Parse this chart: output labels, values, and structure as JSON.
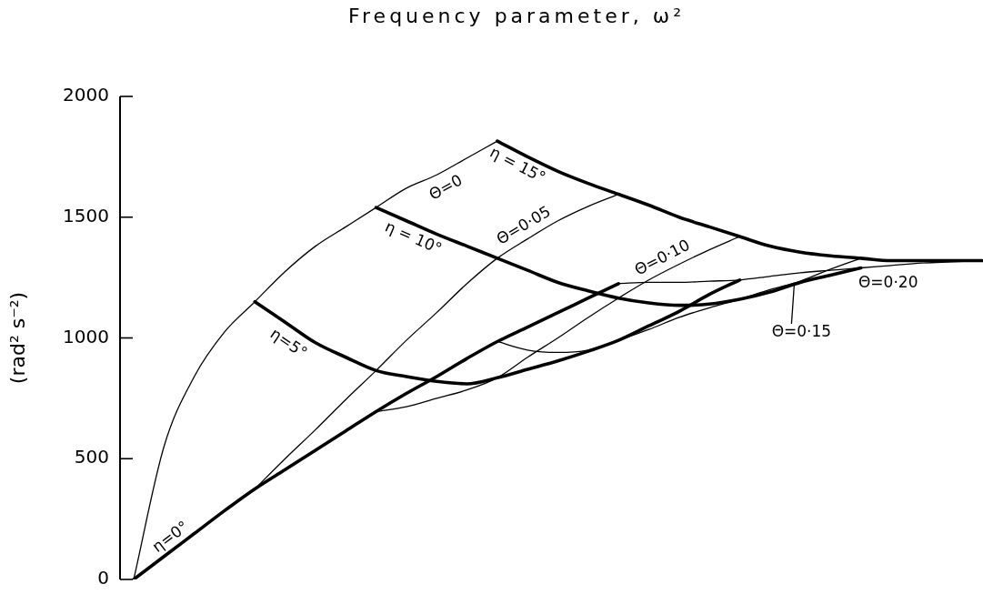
{
  "chart_data": {
    "type": "line",
    "title": "Frequency parameter, ω²",
    "ylabel": "(rad² s⁻²)",
    "categories": [
      null,
      null,
      null,
      null,
      null,
      null,
      null,
      null,
      null,
      null,
      null,
      null,
      null,
      null,
      null,
      null,
      null,
      null,
      null,
      null,
      null,
      null,
      null,
      null,
      null,
      null,
      null,
      null,
      null
    ],
    "series": [
      {
        "name": "η=0°",
        "color": "#000000",
        "values": [
          0,
          95,
          190,
          285,
          375,
          455,
          535,
          615,
          695,
          770,
          840,
          915,
          985,
          1045,
          1105,
          1165,
          1225,
          null,
          null,
          null,
          null,
          null,
          null,
          null,
          null,
          null,
          null,
          null,
          null
        ]
      },
      {
        "name": "η=5°",
        "color": "#000000",
        "values": [
          null,
          null,
          null,
          null,
          1150,
          1065,
          980,
          920,
          865,
          840,
          820,
          810,
          835,
          870,
          905,
          945,
          990,
          1050,
          1110,
          1180,
          1240,
          null,
          null,
          null,
          null,
          null,
          null,
          null,
          null
        ]
      },
      {
        "name": "η = 10°",
        "color": "#000000",
        "values": [
          null,
          null,
          null,
          null,
          null,
          null,
          null,
          null,
          1540,
          1485,
          1430,
          1380,
          1330,
          1280,
          1230,
          1195,
          1165,
          1145,
          1135,
          1140,
          1160,
          1190,
          1230,
          1260,
          1290,
          null,
          null,
          null,
          null
        ]
      },
      {
        "name": "η = 15°",
        "color": "#000000",
        "values": [
          null,
          null,
          null,
          null,
          null,
          null,
          null,
          null,
          null,
          null,
          null,
          null,
          1815,
          1750,
          1690,
          1640,
          1595,
          1550,
          1500,
          1460,
          1420,
          1380,
          1355,
          1340,
          1330,
          1320,
          1320,
          1320,
          1320
        ]
      },
      {
        "name": "Θ=0",
        "color": "#000000",
        "values": [
          0,
          550,
          840,
          1025,
          1150,
          1275,
          1380,
          1460,
          1540,
          1620,
          1675,
          1745,
          1815,
          null,
          null,
          null,
          null,
          null,
          null,
          null,
          null,
          null,
          null,
          null,
          null,
          null,
          null,
          null,
          null
        ]
      },
      {
        "name": "Θ=0·05",
        "color": "#000000",
        "values": [
          null,
          null,
          null,
          null,
          375,
          500,
          620,
          745,
          865,
          990,
          1105,
          1225,
          1330,
          1410,
          1485,
          1545,
          1595,
          null,
          null,
          null,
          null,
          null,
          null,
          null,
          null,
          null,
          null,
          null,
          null
        ]
      },
      {
        "name": "Θ=0·10",
        "color": "#000000",
        "values": [
          null,
          null,
          null,
          null,
          null,
          null,
          null,
          null,
          695,
          715,
          750,
          785,
          835,
          920,
          1000,
          1085,
          1165,
          1240,
          1305,
          1365,
          1420,
          null,
          null,
          null,
          null,
          null,
          null,
          null,
          null
        ]
      },
      {
        "name": "Θ=0·15",
        "color": "#000000",
        "values": [
          null,
          null,
          null,
          null,
          null,
          null,
          null,
          null,
          null,
          null,
          null,
          null,
          985,
          950,
          940,
          950,
          990,
          1035,
          1085,
          1125,
          1160,
          1200,
          1235,
          1285,
          1330,
          null,
          null,
          null,
          null
        ]
      },
      {
        "name": "Θ=0·20",
        "color": "#000000",
        "values": [
          null,
          null,
          null,
          null,
          null,
          null,
          null,
          null,
          null,
          null,
          null,
          null,
          null,
          null,
          null,
          null,
          1225,
          1230,
          1230,
          1235,
          1240,
          1255,
          1270,
          1280,
          1290,
          1300,
          1310,
          1315,
          1320
        ]
      }
    ],
    "ylim": [
      0,
      2000
    ],
    "yticks": [
      0,
      500,
      1000,
      1500,
      2000
    ],
    "marker": "none"
  }
}
